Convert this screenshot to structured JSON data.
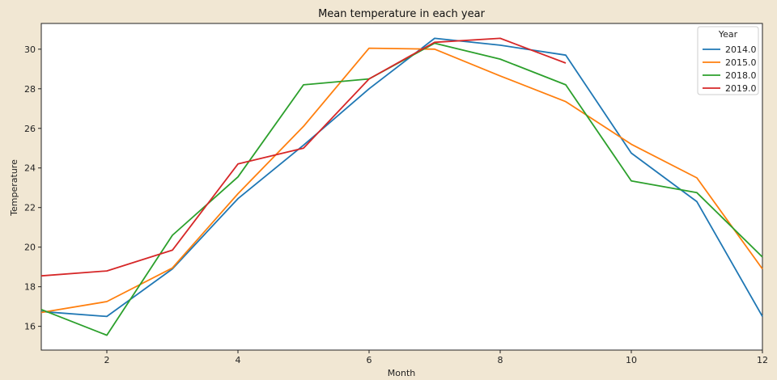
{
  "chart_data": {
    "type": "line",
    "title": "Mean temperature in each year",
    "xlabel": "Month",
    "ylabel": "Temperature",
    "xlim": [
      1,
      12
    ],
    "ylim": [
      14.8,
      31.3
    ],
    "xticks": [
      2,
      4,
      6,
      8,
      10,
      12
    ],
    "yticks": [
      16,
      18,
      20,
      22,
      24,
      26,
      28,
      30
    ],
    "grid": false,
    "legend": {
      "title": "Year",
      "position": "top-right"
    },
    "series": [
      {
        "name": "2014.0",
        "color": "#1f77b4",
        "x": [
          1,
          2,
          3,
          4,
          5,
          6,
          7,
          8,
          9,
          10,
          11,
          12
        ],
        "values": [
          16.75,
          16.5,
          18.9,
          22.45,
          25.15,
          28.0,
          30.55,
          30.2,
          29.7,
          24.75,
          22.3,
          16.5
        ]
      },
      {
        "name": "2015.0",
        "color": "#ff7f0e",
        "x": [
          1,
          2,
          3,
          4,
          5,
          6,
          7,
          8,
          9,
          10,
          11,
          12
        ],
        "values": [
          16.7,
          17.25,
          18.95,
          22.7,
          26.1,
          30.05,
          30.0,
          28.65,
          27.35,
          25.2,
          23.5,
          18.9
        ]
      },
      {
        "name": "2018.0",
        "color": "#2ca02c",
        "x": [
          1,
          2,
          3,
          4,
          5,
          6,
          7,
          8,
          9,
          10,
          11,
          12
        ],
        "values": [
          16.85,
          15.55,
          20.6,
          23.55,
          28.2,
          28.5,
          30.3,
          29.5,
          28.2,
          23.35,
          22.75,
          19.5
        ]
      },
      {
        "name": "2019.0",
        "color": "#d62728",
        "x": [
          1,
          2,
          3,
          4,
          5,
          6,
          7,
          8,
          9
        ],
        "values": [
          18.55,
          18.8,
          19.85,
          24.2,
          25.0,
          28.5,
          30.35,
          30.55,
          29.3
        ]
      }
    ]
  }
}
